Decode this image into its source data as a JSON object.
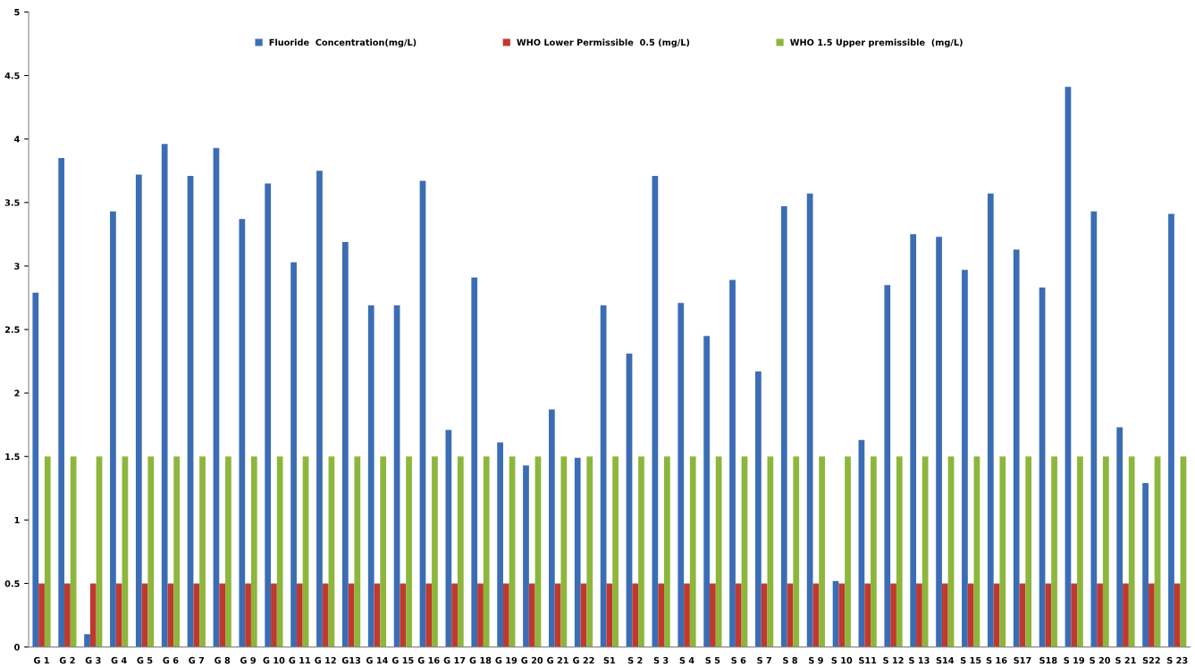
{
  "chart_data": {
    "type": "bar",
    "categories": [
      "G 1",
      "G 2",
      "G 3",
      "G 4",
      "G 5",
      "G 6",
      "G 7",
      "G 8",
      "G 9",
      "G 10",
      "G 11",
      "G 12",
      "G13",
      "G 14",
      "G 15",
      "G 16",
      "G 17",
      "G 18",
      "G 19",
      "G 20",
      "G 21",
      "G 22",
      "S1",
      "S 2",
      "S 3",
      "S 4",
      "S 5",
      "S 6",
      "S 7",
      "S 8",
      "S 9",
      "S 10",
      "S11",
      "S 12",
      "S 13",
      "S14",
      "S 15",
      "S 16",
      "S17",
      "S18",
      "S 19",
      "S 20",
      "S 21",
      "S22",
      "S 23"
    ],
    "series": [
      {
        "name": "Fluoride  Concentration(mg/L)",
        "color": "#3b6db5",
        "values": [
          2.79,
          3.85,
          0.1,
          3.43,
          3.72,
          3.96,
          3.71,
          3.93,
          3.37,
          3.65,
          3.03,
          3.75,
          3.19,
          2.69,
          2.69,
          3.67,
          1.71,
          2.91,
          1.61,
          1.43,
          1.87,
          1.49,
          2.69,
          2.31,
          3.71,
          2.71,
          2.45,
          2.89,
          2.17,
          3.47,
          3.57,
          0.52,
          1.63,
          2.85,
          3.25,
          3.23,
          2.97,
          3.57,
          3.13,
          2.83,
          4.41,
          3.43,
          1.73,
          1.29,
          3.41
        ]
      },
      {
        "name": "WHO Lower Permissible  0.5 (mg/L)",
        "color": "#c0392f",
        "values": [
          0.5,
          0.5,
          0.5,
          0.5,
          0.5,
          0.5,
          0.5,
          0.5,
          0.5,
          0.5,
          0.5,
          0.5,
          0.5,
          0.5,
          0.5,
          0.5,
          0.5,
          0.5,
          0.5,
          0.5,
          0.5,
          0.5,
          0.5,
          0.5,
          0.5,
          0.5,
          0.5,
          0.5,
          0.5,
          0.5,
          0.5,
          0.5,
          0.5,
          0.5,
          0.5,
          0.5,
          0.5,
          0.5,
          0.5,
          0.5,
          0.5,
          0.5,
          0.5,
          0.5,
          0.5
        ]
      },
      {
        "name": "WHO 1.5 Upper premissible  (mg/L)",
        "color": "#8db63c",
        "values": [
          1.5,
          1.5,
          1.5,
          1.5,
          1.5,
          1.5,
          1.5,
          1.5,
          1.5,
          1.5,
          1.5,
          1.5,
          1.5,
          1.5,
          1.5,
          1.5,
          1.5,
          1.5,
          1.5,
          1.5,
          1.5,
          1.5,
          1.5,
          1.5,
          1.5,
          1.5,
          1.5,
          1.5,
          1.5,
          1.5,
          1.5,
          1.5,
          1.5,
          1.5,
          1.5,
          1.5,
          1.5,
          1.5,
          1.5,
          1.5,
          1.5,
          1.5,
          1.5,
          1.5,
          1.5
        ]
      }
    ],
    "ylim": [
      0,
      5
    ],
    "yticks": [
      0,
      0.5,
      1,
      1.5,
      2,
      2.5,
      3,
      3.5,
      4,
      4.5,
      5
    ],
    "grid": false,
    "legend": "top"
  }
}
